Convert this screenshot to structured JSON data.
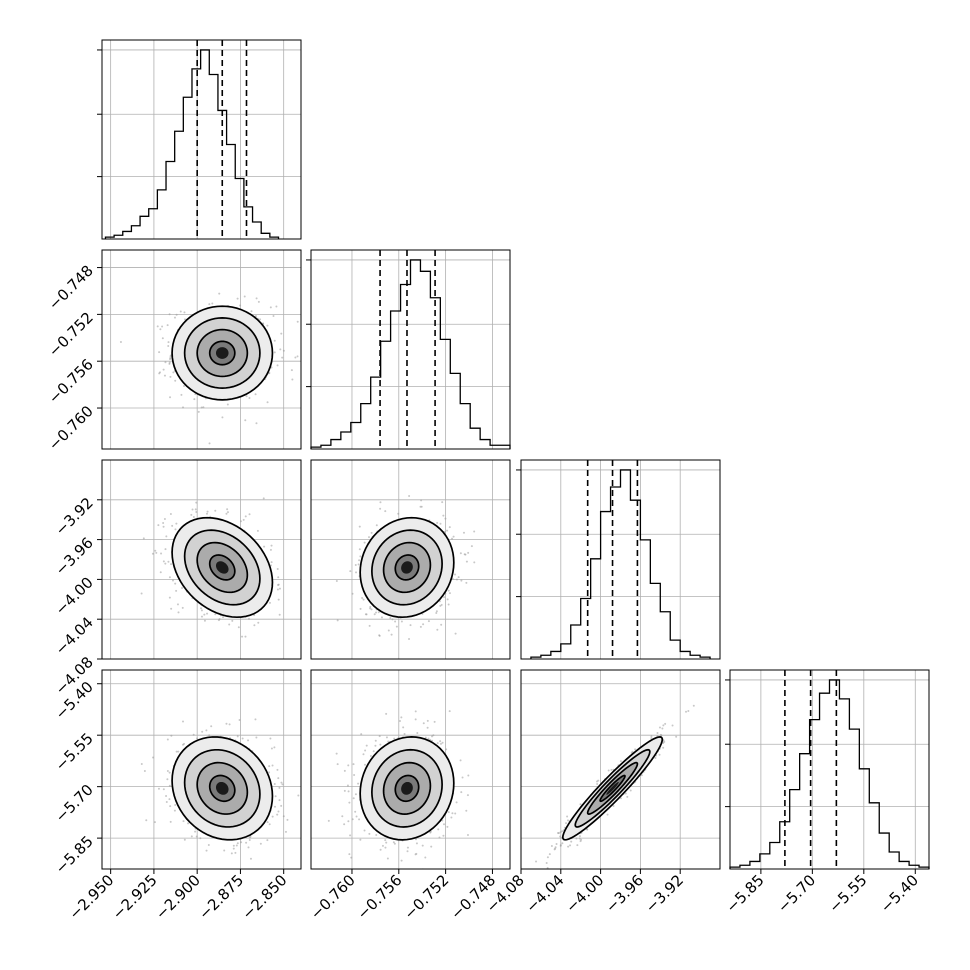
{
  "chart_data": {
    "type": "corner",
    "parameters": [
      {
        "range": [
          -2.955,
          -2.84
        ],
        "ticks": [
          -2.95,
          -2.925,
          -2.9,
          -2.875,
          -2.85
        ],
        "tick_labels": [
          "−2.950",
          "−2.925",
          "−2.900",
          "−2.875",
          "−2.850"
        ]
      },
      {
        "range": [
          -0.7635,
          -0.7465
        ],
        "ticks": [
          -0.76,
          -0.756,
          -0.752,
          -0.748
        ],
        "tick_labels": [
          "−0.760",
          "−0.756",
          "−0.752",
          "−0.748"
        ]
      },
      {
        "range": [
          -4.08,
          -3.88
        ],
        "ticks": [
          -4.08,
          -4.04,
          -4.0,
          -3.96,
          -3.92
        ],
        "tick_labels": [
          "−4.08",
          "−4.04",
          "−4.00",
          "−3.96",
          "−3.92"
        ]
      },
      {
        "range": [
          -5.94,
          -5.36
        ],
        "ticks": [
          -5.85,
          -5.7,
          -5.55,
          -5.4
        ],
        "tick_labels": [
          "−5.85",
          "−5.70",
          "−5.55",
          "−5.40"
        ]
      }
    ],
    "marginals": [
      {
        "bins_start": -2.953,
        "bin_width": 0.005,
        "counts": [
          0.01,
          0.02,
          0.04,
          0.07,
          0.12,
          0.16,
          0.26,
          0.41,
          0.57,
          0.75,
          0.9,
          1.0,
          0.87,
          0.68,
          0.5,
          0.32,
          0.17,
          0.09,
          0.03,
          0.01
        ],
        "quantiles": [
          -2.9,
          -2.8855,
          -2.8715
        ]
      },
      {
        "bins_start": -0.7635,
        "bin_width": 0.00085,
        "counts": [
          0.01,
          0.02,
          0.05,
          0.09,
          0.14,
          0.24,
          0.38,
          0.57,
          0.73,
          0.87,
          1.0,
          0.94,
          0.8,
          0.58,
          0.4,
          0.24,
          0.11,
          0.05,
          0.02,
          0.02
        ],
        "quantiles": [
          -0.7576,
          -0.7553,
          -0.7529
        ]
      },
      {
        "bins_start": -4.07,
        "bin_width": 0.01,
        "counts": [
          0.01,
          0.02,
          0.04,
          0.08,
          0.18,
          0.32,
          0.53,
          0.78,
          0.91,
          1.0,
          0.84,
          0.63,
          0.4,
          0.25,
          0.1,
          0.04,
          0.02,
          0.01
        ],
        "quantiles": [
          -4.013,
          -3.988,
          -3.963
        ]
      },
      {
        "bins_start": -5.94,
        "bin_width": 0.029,
        "counts": [
          0.01,
          0.02,
          0.04,
          0.08,
          0.14,
          0.25,
          0.42,
          0.61,
          0.79,
          0.93,
          1.0,
          0.9,
          0.74,
          0.53,
          0.35,
          0.19,
          0.09,
          0.04,
          0.02,
          0.01
        ],
        "quantiles": [
          -5.78,
          -5.705,
          -5.63
        ]
      }
    ],
    "pairs": [
      {
        "row": 1,
        "col": 0,
        "mean": [
          -2.8855,
          -0.7553
        ],
        "sd": [
          0.0145,
          0.002
        ],
        "corr": 0.0
      },
      {
        "row": 2,
        "col": 0,
        "mean": [
          -2.8855,
          -3.988
        ],
        "sd": [
          0.0145,
          0.025
        ],
        "corr": -0.3
      },
      {
        "row": 2,
        "col": 1,
        "mean": [
          -0.7553,
          -3.988
        ],
        "sd": [
          0.002,
          0.025
        ],
        "corr": 0.1
      },
      {
        "row": 3,
        "col": 0,
        "mean": [
          -2.8855,
          -5.705
        ],
        "sd": [
          0.0145,
          0.075
        ],
        "corr": -0.15
      },
      {
        "row": 3,
        "col": 1,
        "mean": [
          -0.7553,
          -5.705
        ],
        "sd": [
          0.002,
          0.075
        ],
        "corr": 0.1
      },
      {
        "row": 3,
        "col": 2,
        "mean": [
          -3.988,
          -5.705
        ],
        "sd": [
          0.025,
          0.075
        ],
        "corr": 0.95
      }
    ],
    "levels_sigma": [
      0.5,
      1.0,
      1.5,
      2.0
    ],
    "grid": true
  }
}
